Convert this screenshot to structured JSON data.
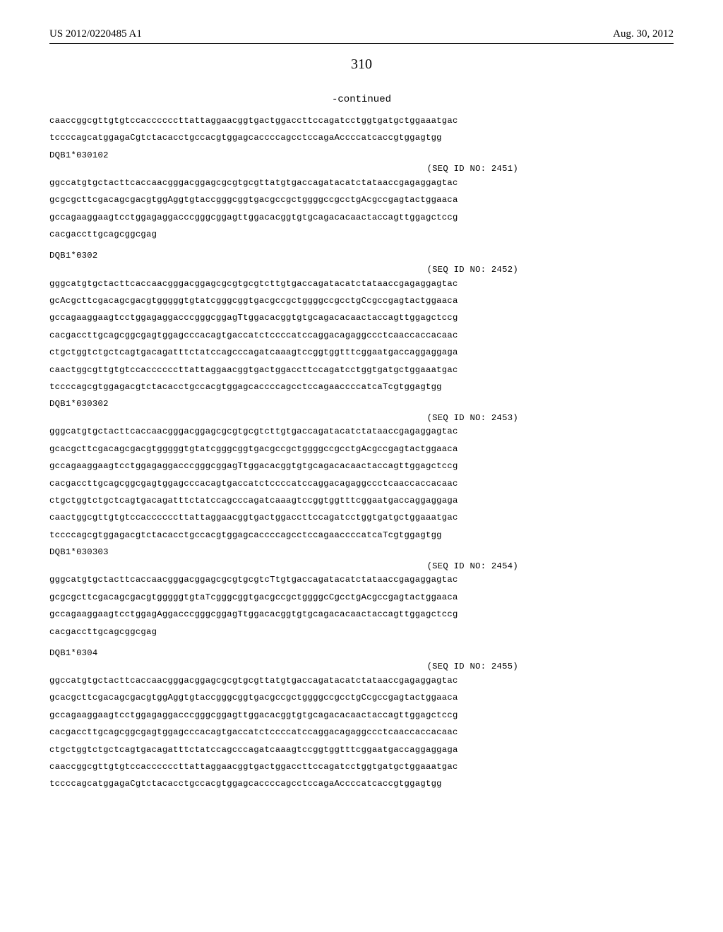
{
  "header": {
    "pub_number": "US 2012/0220485 A1",
    "pub_date": "Aug. 30, 2012"
  },
  "page_number": "310",
  "continued_label": "-continued",
  "blocks": [
    {
      "type": "seq",
      "text": "caaccggcgttgtgtccaccccccttattaggaacggtgactggaccttccagatcctggtgatgctggaaatgac"
    },
    {
      "type": "seq",
      "text": "tccccagcatggagaCgtctacacctgccacgtggagcaccccagcctccagaAccccatcaccgtggagtgg"
    },
    {
      "type": "allele",
      "text": "DQB1*030102"
    },
    {
      "type": "seqid",
      "text": "(SEQ ID NO: 2451)"
    },
    {
      "type": "seq",
      "text": "ggccatgtgctacttcaccaacgggacggagcgcgtgcgttatgtgaccagatacatctataaccgagaggagtac"
    },
    {
      "type": "seq",
      "text": "gcgcgcttcgacagcgacgtggAggtgtaccgggcggtgacgccgctggggccgcctgAcgccgagtactggaaca"
    },
    {
      "type": "seq",
      "text": "gccagaaggaagtcctggagaggacccgggcggagttggacacggtgtgcagacacaactaccagttggagctccg"
    },
    {
      "type": "seq",
      "text": "cacgaccttgcagcggcgag"
    },
    {
      "type": "gap"
    },
    {
      "type": "allele",
      "text": "DQB1*0302"
    },
    {
      "type": "seqid",
      "text": "(SEQ ID NO: 2452)"
    },
    {
      "type": "seq",
      "text": "gggcatgtgctacttcaccaacgggacggagcgcgtgcgtcttgtgaccagatacatctataaccgagaggagtac"
    },
    {
      "type": "seq",
      "text": "gcAcgcttcgacagcgacgtgggggtgtatcgggcggtgacgccgctggggccgcctgCcgccgagtactggaaca"
    },
    {
      "type": "seq",
      "text": "gccagaaggaagtcctggagaggacccgggcggagTtggacacggtgtgcagacacaactaccagttggagctccg"
    },
    {
      "type": "seq",
      "text": "cacgaccttgcagcggcgagtggagcccacagtgaccatctccccatccaggacagaggccctcaaccaccacaac"
    },
    {
      "type": "seq",
      "text": "ctgctggtctgctcagtgacagatttctatccagcccagatcaaagtccggtggtttcggaatgaccaggaggaga"
    },
    {
      "type": "seq",
      "text": "caactggcgttgtgtccaccccccttattaggaacggtgactggaccttccagatcctggtgatgctggaaatgac"
    },
    {
      "type": "seq",
      "text": "tccccagcgtggagacgtctacacctgccacgtggagcaccccagcctccagaaccccatcaTcgtggagtgg"
    },
    {
      "type": "allele",
      "text": "DQB1*030302"
    },
    {
      "type": "seqid",
      "text": "(SEQ ID NO: 2453)"
    },
    {
      "type": "seq",
      "text": "gggcatgtgctacttcaccaacgggacggagcgcgtgcgtcttgtgaccagatacatctataaccgagaggagtac"
    },
    {
      "type": "seq",
      "text": "gcacgcttcgacagcgacgtgggggtgtatcgggcggtgacgccgctggggccgcctgAcgccgagtactggaaca"
    },
    {
      "type": "seq",
      "text": "gccagaaggaagtcctggagaggacccgggcggagTtggacacggtgtgcagacacaactaccagttggagctccg"
    },
    {
      "type": "seq",
      "text": "cacgaccttgcagcggcgagtggagcccacagtgaccatctccccatccaggacagaggccctcaaccaccacaac"
    },
    {
      "type": "seq",
      "text": "ctgctggtctgctcagtgacagatttctatccagcccagatcaaagtccggtggtttcggaatgaccaggaggaga"
    },
    {
      "type": "seq",
      "text": "caactggcgttgtgtccaccccccttattaggaacggtgactggaccttccagatcctggtgatgctggaaatgac"
    },
    {
      "type": "seq",
      "text": "tccccagcgtggagacgtctacacctgccacgtggagcaccccagcctccagaaccccatcaTcgtggagtgg"
    },
    {
      "type": "allele",
      "text": "DQB1*030303"
    },
    {
      "type": "seqid",
      "text": "(SEQ ID NO: 2454)"
    },
    {
      "type": "seq",
      "text": "gggcatgtgctacttcaccaacgggacggagcgcgtgcgtcTtgtgaccagatacatctataaccgagaggagtac"
    },
    {
      "type": "seq",
      "text": "gcgcgcttcgacagcgacgtgggggtgtaTcgggcggtgacgccgctggggcCgcctgAcgccgagtactggaaca"
    },
    {
      "type": "seq",
      "text": "gccagaaggaagtcctggagAggacccgggcggagTtggacacggtgtgcagacacaactaccagttggagctccg"
    },
    {
      "type": "seq",
      "text": "cacgaccttgcagcggcgag"
    },
    {
      "type": "gap"
    },
    {
      "type": "allele",
      "text": "DQB1*0304"
    },
    {
      "type": "seqid",
      "text": "(SEQ ID NO: 2455)"
    },
    {
      "type": "seq",
      "text": "ggccatgtgctacttcaccaacgggacggagcgcgtgcgttatgtgaccagatacatctataaccgagaggagtac"
    },
    {
      "type": "seq",
      "text": "gcacgcttcgacagcgacgtggAggtgtaccgggcggtgacgccgctggggccgcctgCcgccgagtactggaaca"
    },
    {
      "type": "seq",
      "text": "gccagaaggaagtcctggagaggacccgggcggagttggacacggtgtgcagacacaactaccagttggagctccg"
    },
    {
      "type": "seq",
      "text": "cacgaccttgcagcggcgagtggagcccacagtgaccatctccccatccaggacagaggccctcaaccaccacaac"
    },
    {
      "type": "seq",
      "text": "ctgctggtctgctcagtgacagatttctatccagcccagatcaaagtccggtggtttcggaatgaccaggaggaga"
    },
    {
      "type": "seq",
      "text": "caaccggcgttgtgtccaccccccttattaggaacggtgactggaccttccagatcctggtgatgctggaaatgac"
    },
    {
      "type": "seq",
      "text": "tccccagcatggagaCgtctacacctgccacgtggagcaccccagcctccagaAccccatcaccgtggagtgg"
    }
  ]
}
